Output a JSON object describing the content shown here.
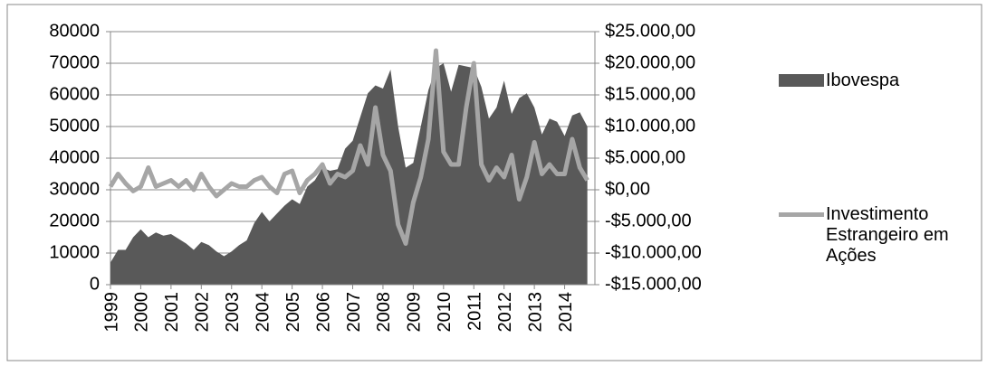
{
  "chart_data": {
    "type": "area-line",
    "categories": [
      "1999",
      null,
      null,
      null,
      "2000",
      null,
      null,
      null,
      "2001",
      null,
      null,
      null,
      "2002",
      null,
      null,
      null,
      "2003",
      null,
      null,
      null,
      "2004",
      null,
      null,
      null,
      "2005",
      null,
      null,
      null,
      "2006",
      null,
      null,
      null,
      "2007",
      null,
      null,
      null,
      "2008",
      null,
      null,
      null,
      "2009",
      null,
      null,
      null,
      "2010",
      null,
      null,
      null,
      "2011",
      null,
      null,
      null,
      "2012",
      null,
      null,
      null,
      "2013",
      null,
      null,
      null,
      "2014",
      null,
      null,
      null
    ],
    "series": [
      {
        "name": "Ibovespa",
        "color": "#595959",
        "type": "area",
        "values": [
          7000,
          11000,
          11000,
          15000,
          17500,
          15000,
          16500,
          15500,
          16000,
          14500,
          13000,
          11000,
          13500,
          12500,
          10500,
          9000,
          10500,
          12500,
          14000,
          19500,
          23000,
          20000,
          22500,
          25000,
          27000,
          25500,
          31000,
          33000,
          37000,
          36000,
          36500,
          43000,
          45500,
          53000,
          60500,
          63000,
          62000,
          68000,
          50000,
          37000,
          38500,
          50000,
          61500,
          68500,
          70000,
          61000,
          69500,
          69000,
          68500,
          62500,
          52500,
          56000,
          64500,
          54000,
          59000,
          60500,
          56000,
          47500,
          52500,
          51500,
          47000,
          53500,
          54500,
          50000
        ]
      },
      {
        "name": "Investimento Estrangeiro em Ações",
        "color": "#a6a6a6",
        "type": "line",
        "axis": "y2",
        "values": [
          500,
          2500,
          1000,
          -200,
          500,
          3500,
          500,
          1000,
          1500,
          500,
          1500,
          0,
          2500,
          500,
          -1000,
          0,
          1000,
          500,
          500,
          1500,
          2000,
          500,
          -500,
          2500,
          3000,
          -500,
          1500,
          2500,
          4000,
          1000,
          2500,
          2000,
          3000,
          7000,
          4000,
          13000,
          5500,
          3000,
          -5500,
          -8500,
          -2000,
          2000,
          8000,
          22000,
          6000,
          4000,
          4000,
          13000,
          20000,
          4000,
          1500,
          3500,
          2000,
          5500,
          -1500,
          2000,
          7500,
          2500,
          4000,
          2500,
          2500,
          8000,
          3500,
          1500
        ]
      }
    ],
    "ylim": [
      0,
      80000
    ],
    "yticks": [
      0,
      10000,
      20000,
      30000,
      40000,
      50000,
      60000,
      70000,
      80000
    ],
    "y2lim": [
      -15000,
      25000
    ],
    "y2ticks": [
      {
        "value": -15000,
        "label": "-$15.000,00"
      },
      {
        "value": -10000,
        "label": "-$10.000,00"
      },
      {
        "value": -5000,
        "label": "-$5.000,00"
      },
      {
        "value": 0,
        "label": "$0,00"
      },
      {
        "value": 5000,
        "label": "$5.000,00"
      },
      {
        "value": 10000,
        "label": "$10.000,00"
      },
      {
        "value": 15000,
        "label": "$15.000,00"
      },
      {
        "value": 20000,
        "label": "$20.000,00"
      },
      {
        "value": 25000,
        "label": "$25.000,00"
      }
    ],
    "grid": true,
    "legend": "right"
  }
}
